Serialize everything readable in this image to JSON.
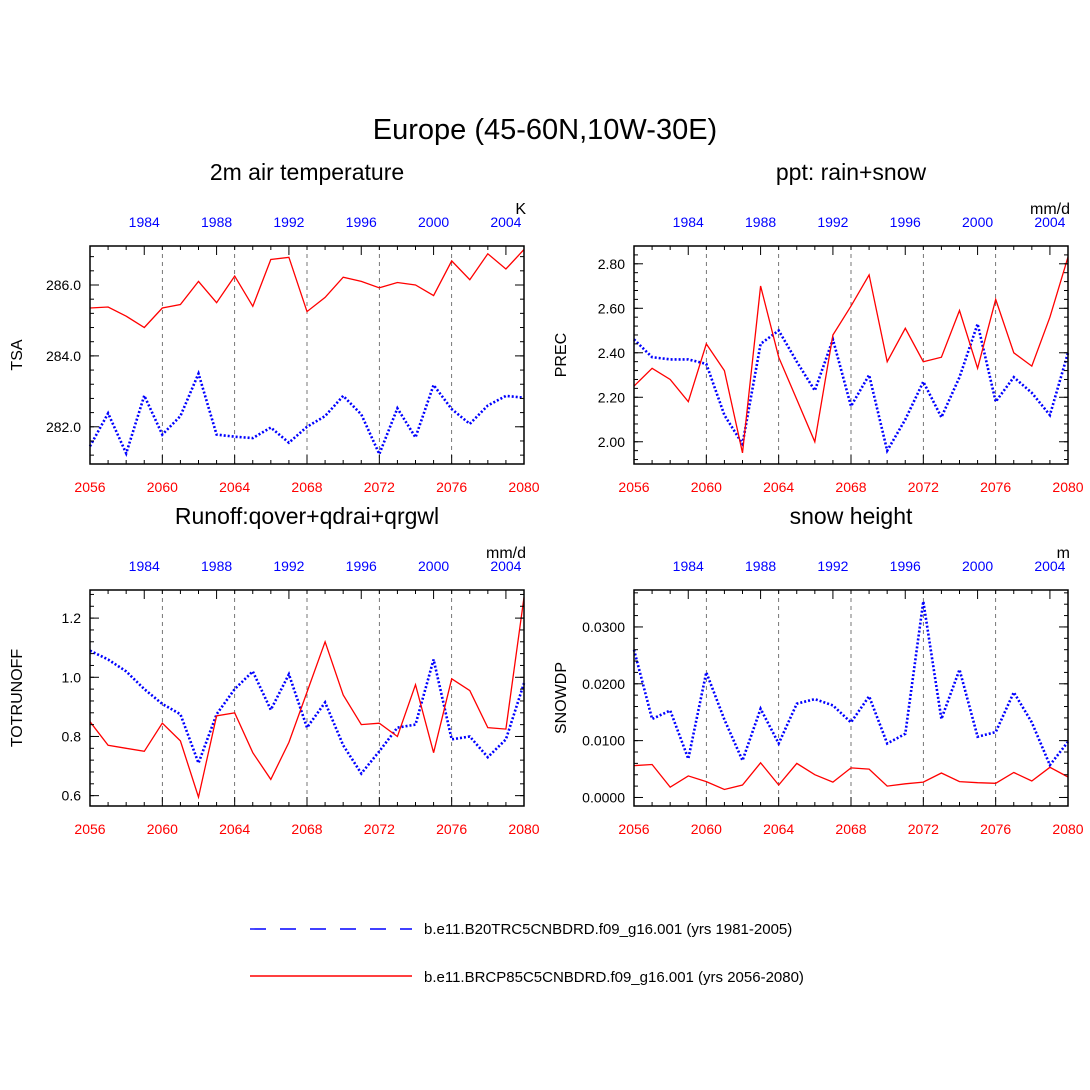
{
  "figure_title": "Europe (45-60N,10W-30E)",
  "colors": {
    "control": "#0000ff",
    "future": "#ff0000",
    "axis": "#000000",
    "grid": "#555555"
  },
  "legend": {
    "control_label": "b.e11.B20TRC5CNBDRD.f09_g16.001 (yrs 1981-2005)",
    "future_label": "b.e11.BRCP85C5CNBDRD.f09_g16.001 (yrs 2056-2080)"
  },
  "chart_data": [
    {
      "type": "line",
      "title": "2m air temperature",
      "ylabel": "TSA",
      "units": "K",
      "ylim": [
        280.95,
        287.1
      ],
      "yticks": [
        282.0,
        284.0,
        286.0
      ],
      "ytick_labels": [
        "282.0",
        "284.0",
        "286.0"
      ],
      "ytick_minor": 0.4,
      "x_bottom": {
        "range": [
          2056,
          2080
        ],
        "ticks": [
          "2056",
          "2060",
          "2064",
          "2068",
          "2072",
          "2076",
          "2080"
        ]
      },
      "x_top": {
        "range": [
          1981,
          2005
        ],
        "ticks": [
          "1984",
          "1988",
          "1992",
          "1996",
          "2000",
          "2004"
        ]
      },
      "series": [
        {
          "name": "b.e11.B20TRC5CNBDRD.f09_g16.001 (yrs 1981-2005)",
          "style": "dotted",
          "color": "#0000ff",
          "x": [
            1981,
            1982,
            1983,
            1984,
            1985,
            1986,
            1987,
            1988,
            1989,
            1990,
            1991,
            1992,
            1993,
            1994,
            1995,
            1996,
            1997,
            1998,
            1999,
            2000,
            2001,
            2002,
            2003,
            2004,
            2005
          ],
          "values": [
            281.45,
            282.38,
            281.25,
            282.88,
            281.78,
            282.3,
            283.5,
            281.78,
            281.72,
            281.68,
            281.98,
            281.55,
            282.0,
            282.3,
            282.87,
            282.35,
            281.23,
            282.52,
            281.7,
            283.18,
            282.5,
            282.08,
            282.6,
            282.87,
            282.82
          ]
        },
        {
          "name": "b.e11.BRCP85C5CNBDRD.f09_g16.001 (yrs 2056-2080)",
          "style": "solid",
          "color": "#ff0000",
          "x": [
            2056,
            2057,
            2058,
            2059,
            2060,
            2061,
            2062,
            2063,
            2064,
            2065,
            2066,
            2067,
            2068,
            2069,
            2070,
            2071,
            2072,
            2073,
            2074,
            2075,
            2076,
            2077,
            2078,
            2079,
            2080
          ],
          "values": [
            285.35,
            285.38,
            285.12,
            284.8,
            285.35,
            285.45,
            286.1,
            285.5,
            286.25,
            285.4,
            286.72,
            286.78,
            285.25,
            285.65,
            286.22,
            286.1,
            285.92,
            286.07,
            286.0,
            285.7,
            286.68,
            286.15,
            286.88,
            286.45,
            287.0
          ]
        }
      ]
    },
    {
      "type": "line",
      "title": "ppt: rain+snow",
      "ylabel": "PREC",
      "units": "mm/d",
      "ylim": [
        1.9,
        2.88
      ],
      "yticks": [
        2.0,
        2.2,
        2.4,
        2.6,
        2.8
      ],
      "ytick_labels": [
        "2.00",
        "2.20",
        "2.40",
        "2.60",
        "2.80"
      ],
      "ytick_minor": 0.04,
      "x_bottom": {
        "range": [
          2056,
          2080
        ],
        "ticks": [
          "2056",
          "2060",
          "2064",
          "2068",
          "2072",
          "2076",
          "2080"
        ]
      },
      "x_top": {
        "range": [
          1981,
          2005
        ],
        "ticks": [
          "1984",
          "1988",
          "1992",
          "1996",
          "2000",
          "2004"
        ]
      },
      "series": [
        {
          "name": "b.e11.B20TRC5CNBDRD.f09_g16.001 (yrs 1981-2005)",
          "style": "dotted",
          "color": "#0000ff",
          "x": [
            1981,
            1982,
            1983,
            1984,
            1985,
            1986,
            1987,
            1988,
            1989,
            1990,
            1991,
            1992,
            1993,
            1994,
            1995,
            1996,
            1997,
            1998,
            1999,
            2000,
            2001,
            2002,
            2003,
            2004,
            2005
          ],
          "values": [
            2.46,
            2.38,
            2.37,
            2.37,
            2.35,
            2.12,
            1.99,
            2.44,
            2.5,
            2.36,
            2.23,
            2.46,
            2.16,
            2.3,
            1.96,
            2.1,
            2.27,
            2.11,
            2.29,
            2.53,
            2.18,
            2.29,
            2.22,
            2.12,
            2.4
          ]
        },
        {
          "name": "b.e11.BRCP85C5CNBDRD.f09_g16.001 (yrs 2056-2080)",
          "style": "solid",
          "color": "#ff0000",
          "x": [
            2056,
            2057,
            2058,
            2059,
            2060,
            2061,
            2062,
            2063,
            2064,
            2065,
            2066,
            2067,
            2068,
            2069,
            2070,
            2071,
            2072,
            2073,
            2074,
            2075,
            2076,
            2077,
            2078,
            2079,
            2080
          ],
          "values": [
            2.25,
            2.33,
            2.28,
            2.18,
            2.44,
            2.32,
            1.95,
            2.7,
            2.38,
            2.19,
            2.0,
            2.48,
            2.61,
            2.75,
            2.36,
            2.51,
            2.36,
            2.38,
            2.59,
            2.33,
            2.64,
            2.4,
            2.34,
            2.56,
            2.83
          ]
        }
      ]
    },
    {
      "type": "line",
      "title": "Runoff:qover+qdrai+qrgwl",
      "ylabel": "TOTRUNOFF",
      "units": "mm/d",
      "ylim": [
        0.565,
        1.295
      ],
      "yticks": [
        0.6,
        0.8,
        1.0,
        1.2
      ],
      "ytick_labels": [
        "0.6",
        "0.8",
        "1.0",
        "1.2"
      ],
      "ytick_minor": 0.04,
      "x_bottom": {
        "range": [
          2056,
          2080
        ],
        "ticks": [
          "2056",
          "2060",
          "2064",
          "2068",
          "2072",
          "2076",
          "2080"
        ]
      },
      "x_top": {
        "range": [
          1981,
          2005
        ],
        "ticks": [
          "1984",
          "1988",
          "1992",
          "1996",
          "2000",
          "2004"
        ]
      },
      "series": [
        {
          "name": "b.e11.B20TRC5CNBDRD.f09_g16.001 (yrs 1981-2005)",
          "style": "dotted",
          "color": "#0000ff",
          "x": [
            1981,
            1982,
            1983,
            1984,
            1985,
            1986,
            1987,
            1988,
            1989,
            1990,
            1991,
            1992,
            1993,
            1994,
            1995,
            1996,
            1997,
            1998,
            1999,
            2000,
            2001,
            2002,
            2003,
            2004,
            2005
          ],
          "values": [
            1.09,
            1.06,
            1.02,
            0.96,
            0.91,
            0.875,
            0.71,
            0.875,
            0.96,
            1.02,
            0.89,
            1.01,
            0.83,
            0.915,
            0.77,
            0.675,
            0.75,
            0.83,
            0.84,
            1.06,
            0.79,
            0.8,
            0.73,
            0.79,
            0.98
          ]
        },
        {
          "name": "b.e11.BRCP85C5CNBDRD.f09_g16.001 (yrs 2056-2080)",
          "style": "solid",
          "color": "#ff0000",
          "x": [
            2056,
            2057,
            2058,
            2059,
            2060,
            2061,
            2062,
            2063,
            2064,
            2065,
            2066,
            2067,
            2068,
            2069,
            2070,
            2071,
            2072,
            2073,
            2074,
            2075,
            2076,
            2077,
            2078,
            2079,
            2080
          ],
          "values": [
            0.85,
            0.77,
            0.76,
            0.75,
            0.845,
            0.785,
            0.595,
            0.87,
            0.88,
            0.745,
            0.655,
            0.78,
            0.95,
            1.12,
            0.94,
            0.84,
            0.845,
            0.8,
            0.975,
            0.745,
            0.995,
            0.955,
            0.83,
            0.825,
            1.27
          ]
        }
      ]
    },
    {
      "type": "line",
      "title": "snow height",
      "ylabel": "SNOWDP",
      "units": "m",
      "ylim": [
        -0.0015,
        0.0365
      ],
      "yticks": [
        0.0,
        0.01,
        0.02,
        0.03
      ],
      "ytick_labels": [
        "0.0000",
        "0.0100",
        "0.0200",
        "0.0300"
      ],
      "ytick_minor": 0.002,
      "x_bottom": {
        "range": [
          2056,
          2080
        ],
        "ticks": [
          "2056",
          "2060",
          "2064",
          "2068",
          "2072",
          "2076",
          "2080"
        ]
      },
      "x_top": {
        "range": [
          1981,
          2005
        ],
        "ticks": [
          "1984",
          "1988",
          "1992",
          "1996",
          "2000",
          "2004"
        ]
      },
      "series": [
        {
          "name": "b.e11.B20TRC5CNBDRD.f09_g16.001 (yrs 1981-2005)",
          "style": "dotted",
          "color": "#0000ff",
          "x": [
            1981,
            1982,
            1983,
            1984,
            1985,
            1986,
            1987,
            1988,
            1989,
            1990,
            1991,
            1992,
            1993,
            1994,
            1995,
            1996,
            1997,
            1998,
            1999,
            2000,
            2001,
            2002,
            2003,
            2004,
            2005
          ],
          "values": [
            0.026,
            0.0138,
            0.0153,
            0.0068,
            0.022,
            0.0137,
            0.0065,
            0.0156,
            0.0095,
            0.0165,
            0.0173,
            0.0162,
            0.0132,
            0.0178,
            0.0095,
            0.0112,
            0.0345,
            0.0138,
            0.0225,
            0.0107,
            0.0115,
            0.0185,
            0.0132,
            0.0057,
            0.0098
          ]
        },
        {
          "name": "b.e11.BRCP85C5CNBDRD.f09_g16.001 (yrs 2056-2080)",
          "style": "solid",
          "color": "#ff0000",
          "x": [
            2056,
            2057,
            2058,
            2059,
            2060,
            2061,
            2062,
            2063,
            2064,
            2065,
            2066,
            2067,
            2068,
            2069,
            2070,
            2071,
            2072,
            2073,
            2074,
            2075,
            2076,
            2077,
            2078,
            2079,
            2080
          ],
          "values": [
            0.0056,
            0.0058,
            0.0018,
            0.0038,
            0.0028,
            0.0014,
            0.0022,
            0.0061,
            0.0022,
            0.006,
            0.004,
            0.0027,
            0.0052,
            0.005,
            0.002,
            0.0024,
            0.0027,
            0.0043,
            0.0028,
            0.0026,
            0.0025,
            0.0044,
            0.0029,
            0.0053,
            0.0036
          ]
        }
      ]
    }
  ]
}
